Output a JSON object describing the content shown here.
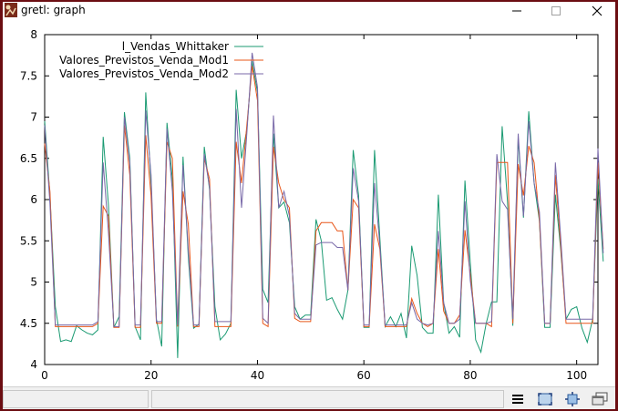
{
  "window": {
    "title": "gretl: graph"
  },
  "icons": {
    "app": "gretl-app-icon",
    "minimize": "minimize-icon",
    "maximize": "maximize-icon",
    "close": "close-icon",
    "menu": "menu-icon",
    "zoom": "zoom-icon",
    "fit": "fit-icon",
    "windows": "windows-icon"
  },
  "colors": {
    "series1": "#1a9a72",
    "series2": "#e8571a",
    "series3": "#7868a8",
    "border": "#6b0d12"
  },
  "chart_data": {
    "type": "line",
    "title": "",
    "xlabel": "",
    "ylabel": "",
    "xlim": [
      0,
      104
    ],
    "ylim": [
      4,
      8
    ],
    "x_ticks": [
      0,
      20,
      40,
      60,
      80,
      100
    ],
    "y_ticks": [
      4,
      4.5,
      5,
      5.5,
      6,
      6.5,
      7,
      7.5,
      8
    ],
    "x_tick_labels": [
      "0",
      "20",
      "40",
      "60",
      "80",
      "100"
    ],
    "y_tick_labels": [
      "4",
      "4.5",
      "5",
      "5.5",
      "6",
      "6.5",
      "7",
      "7.5",
      "8"
    ],
    "legend_position": "top-right",
    "series": [
      {
        "name": "l_Vendas_Whittaker",
        "color": "#1a9a72",
        "values": [
          6.95,
          6.05,
          4.7,
          4.28,
          4.3,
          4.28,
          4.47,
          4.42,
          4.38,
          4.36,
          4.42,
          6.76,
          5.93,
          4.45,
          4.58,
          7.06,
          6.5,
          4.46,
          4.3,
          7.3,
          6.2,
          4.55,
          4.22,
          6.93,
          6.25,
          4.08,
          6.52,
          5.3,
          4.44,
          4.49,
          6.64,
          6.12,
          4.7,
          4.3,
          4.37,
          4.5,
          7.33,
          6.5,
          6.85,
          7.68,
          7.3,
          4.91,
          4.75,
          6.8,
          5.9,
          5.97,
          5.72,
          4.7,
          4.55,
          4.6,
          4.6,
          5.76,
          5.5,
          4.78,
          4.81,
          4.67,
          4.55,
          4.9,
          6.6,
          6.05,
          4.45,
          4.45,
          6.6,
          5.54,
          4.46,
          4.58,
          4.46,
          4.62,
          4.32,
          5.44,
          5.08,
          4.45,
          4.38,
          4.38,
          6.06,
          4.75,
          4.38,
          4.46,
          4.33,
          6.23,
          5.24,
          4.3,
          4.15,
          4.5,
          4.76,
          4.76,
          6.89,
          5.97,
          4.47,
          6.74,
          5.78,
          7.07,
          6.2,
          5.74,
          4.45,
          4.45,
          6.06,
          5.4,
          4.55,
          4.67,
          4.7,
          4.44,
          4.27,
          4.55,
          6.25,
          5.25
        ]
      },
      {
        "name": "Valores_Previstos_Venda_Mod1",
        "color": "#e8571a",
        "values": [
          6.68,
          6.1,
          4.46,
          4.46,
          4.46,
          4.46,
          4.46,
          4.46,
          4.46,
          4.46,
          4.5,
          5.92,
          5.8,
          4.45,
          4.45,
          6.9,
          6.3,
          4.45,
          4.45,
          6.78,
          6.05,
          4.5,
          4.5,
          6.7,
          6.5,
          4.46,
          6.1,
          5.7,
          4.46,
          4.46,
          6.5,
          6.25,
          4.46,
          4.46,
          4.46,
          4.46,
          6.7,
          6.2,
          6.9,
          7.62,
          7.2,
          4.5,
          4.46,
          6.64,
          6.2,
          6.0,
          5.9,
          4.56,
          4.52,
          4.52,
          4.52,
          5.62,
          5.72,
          5.72,
          5.72,
          5.62,
          5.62,
          4.9,
          6.0,
          5.9,
          4.46,
          4.46,
          5.7,
          5.4,
          4.46,
          4.46,
          4.46,
          4.46,
          4.46,
          4.8,
          4.62,
          4.5,
          4.46,
          4.5,
          5.4,
          4.65,
          4.5,
          4.5,
          4.6,
          5.63,
          5.1,
          4.5,
          4.5,
          4.5,
          4.46,
          6.45,
          6.45,
          6.45,
          4.5,
          6.43,
          6.05,
          6.65,
          6.45,
          5.75,
          4.5,
          4.5,
          6.3,
          5.45,
          4.5,
          4.5,
          4.5,
          4.5,
          4.5,
          4.5,
          6.45,
          5.4
        ]
      },
      {
        "name": "Valores_Previstos_Venda_Mod2",
        "color": "#7868a8",
        "values": [
          6.9,
          5.95,
          4.48,
          4.48,
          4.48,
          4.48,
          4.48,
          4.48,
          4.48,
          4.48,
          4.52,
          6.45,
          5.6,
          4.46,
          4.46,
          7.0,
          6.45,
          4.48,
          4.48,
          7.08,
          6.3,
          4.52,
          4.52,
          6.86,
          6.1,
          4.48,
          6.42,
          5.38,
          4.48,
          4.48,
          6.55,
          6.15,
          4.52,
          4.52,
          4.52,
          4.52,
          7.1,
          5.9,
          6.8,
          7.78,
          7.36,
          4.56,
          4.5,
          7.02,
          5.9,
          6.1,
          5.8,
          4.62,
          4.55,
          4.55,
          4.55,
          5.45,
          5.48,
          5.48,
          5.48,
          5.42,
          5.42,
          4.9,
          6.38,
          5.98,
          4.48,
          4.48,
          6.2,
          5.45,
          4.48,
          4.48,
          4.48,
          4.48,
          4.48,
          4.75,
          4.55,
          4.5,
          4.48,
          4.5,
          5.62,
          4.75,
          4.5,
          4.5,
          4.55,
          5.98,
          5.02,
          4.5,
          4.5,
          4.5,
          4.52,
          6.55,
          5.98,
          5.88,
          4.55,
          6.8,
          5.8,
          6.95,
          6.2,
          5.85,
          4.5,
          4.5,
          6.45,
          5.55,
          4.55,
          4.55,
          4.55,
          4.55,
          4.55,
          4.55,
          6.62,
          5.35
        ]
      }
    ]
  }
}
